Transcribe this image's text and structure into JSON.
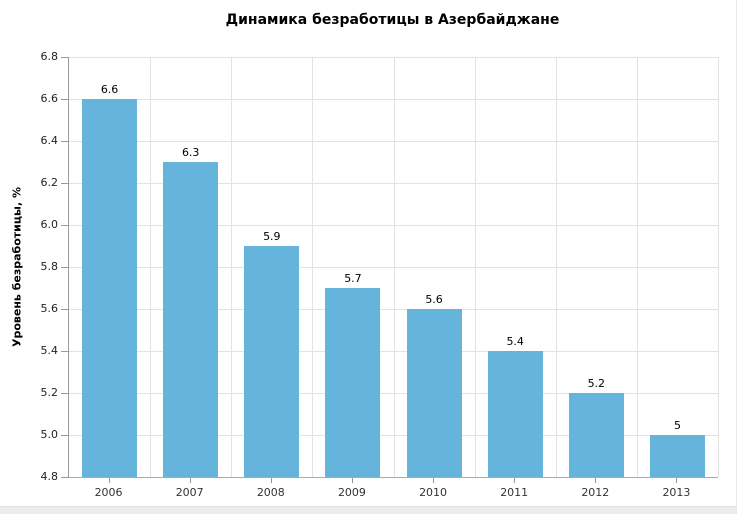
{
  "chart_data": {
    "type": "bar",
    "title": "Динамика безработицы в Азербайджане",
    "ylabel": "Уровень безработицы, %",
    "xlabel": "",
    "categories": [
      "2006",
      "2007",
      "2008",
      "2009",
      "2010",
      "2011",
      "2012",
      "2013"
    ],
    "values": [
      6.6,
      6.3,
      5.9,
      5.7,
      5.6,
      5.4,
      5.2,
      5
    ],
    "value_labels": [
      "6.6",
      "6.3",
      "5.9",
      "5.7",
      "5.6",
      "5.4",
      "5.2",
      "5"
    ],
    "ylim": [
      4.8,
      6.8
    ],
    "ytick_step": 0.2,
    "ytick_labels": [
      "6.8",
      "6.6",
      "6.4",
      "6.2",
      "6.0",
      "5.8",
      "5.6",
      "5.4",
      "5.2",
      "5.0",
      "4.8"
    ],
    "grid": true,
    "legend": "none",
    "colors": {
      "bar": "#64b4db",
      "gridline": "#e2e2e2",
      "axis": "#999999",
      "title_text": "#000000",
      "tick_text": "#333333",
      "footer_strip": "#ececec"
    }
  }
}
